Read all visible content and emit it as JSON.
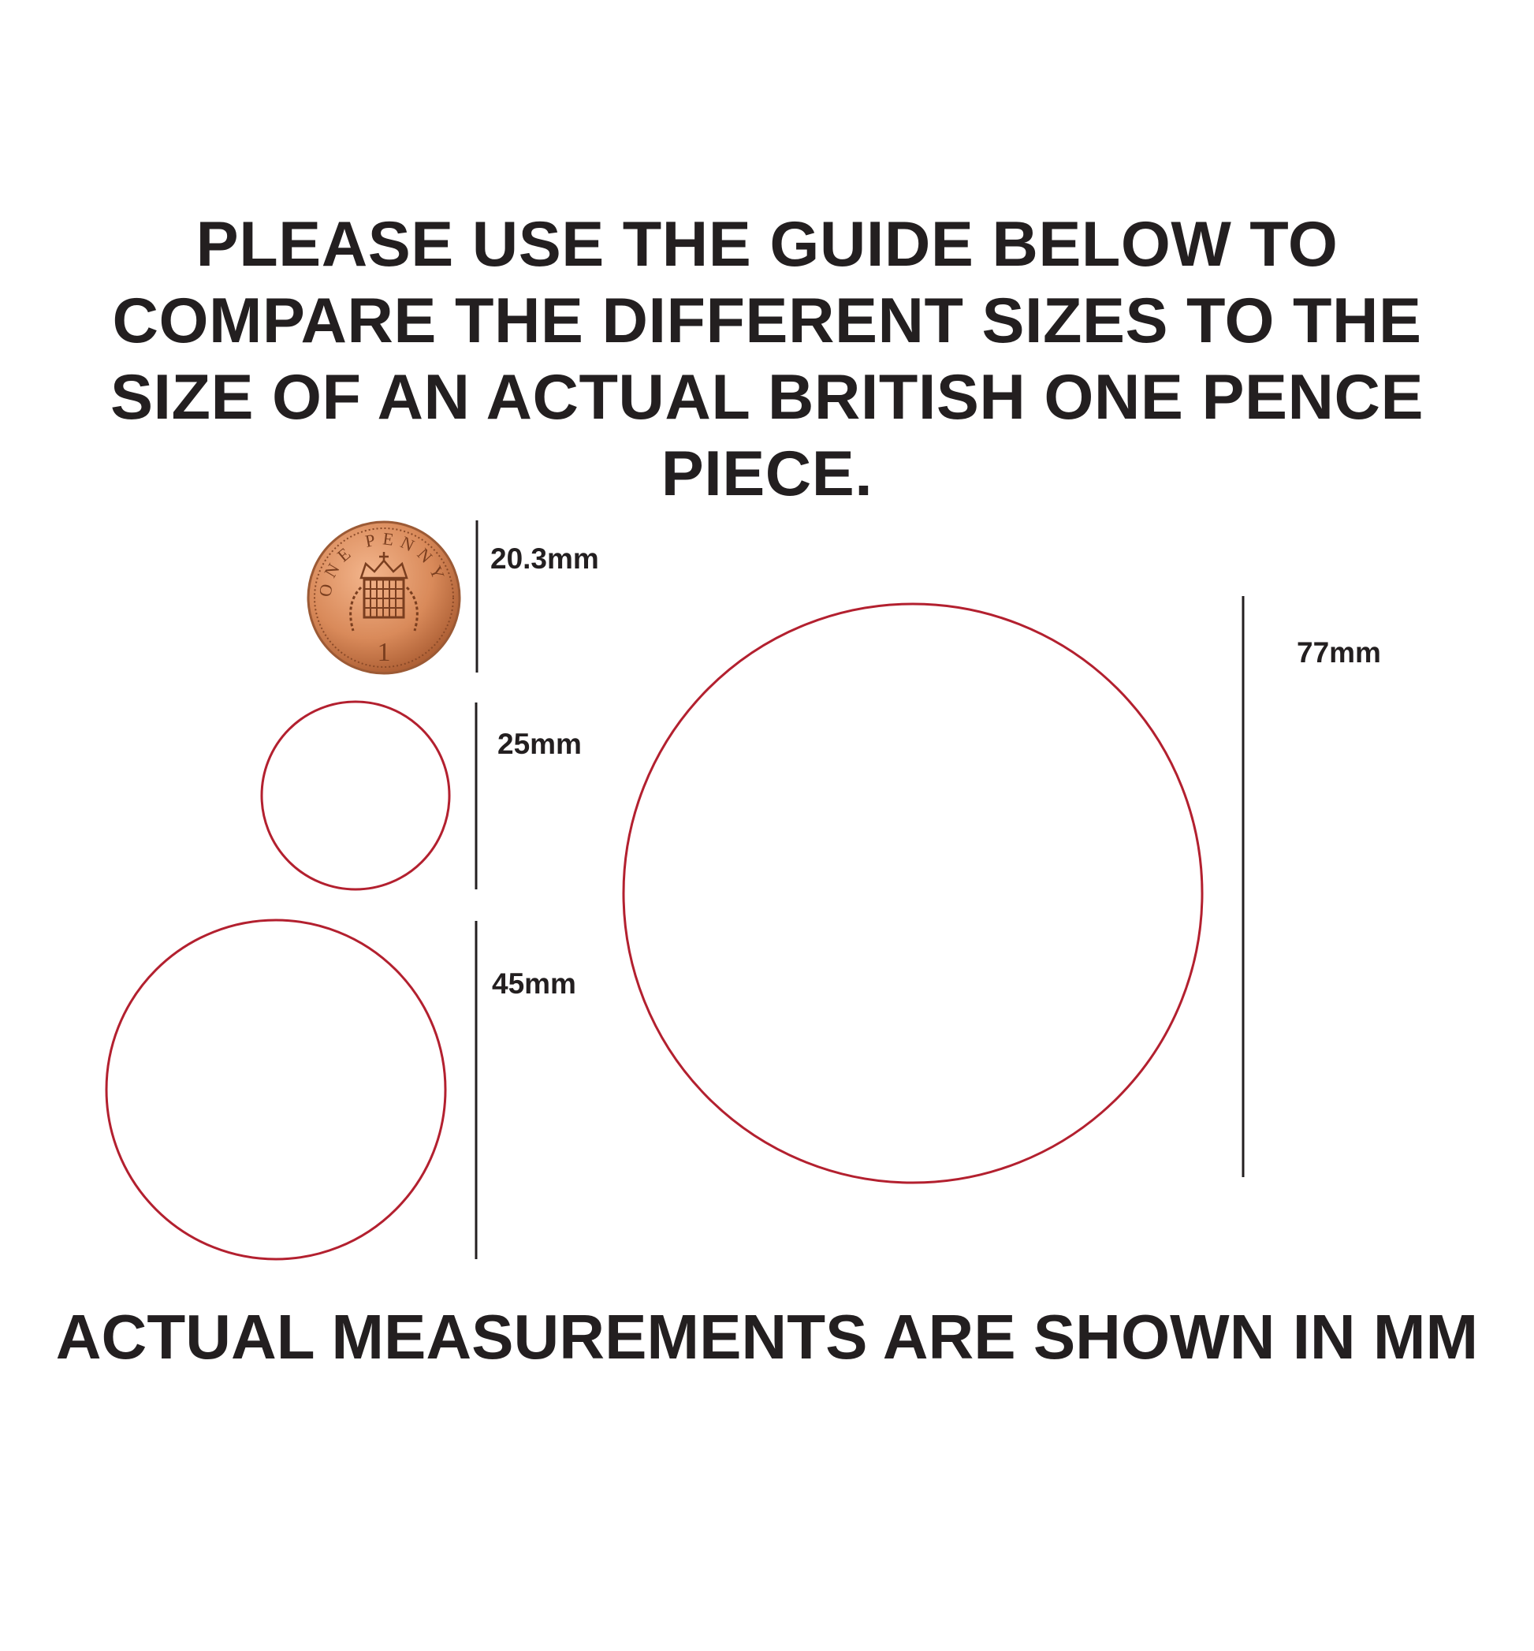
{
  "heading": {
    "lines": [
      "PLEASE USE THE GUIDE BELOW TO",
      "COMPARE THE DIFFERENT SIZES TO THE",
      "SIZE OF AN ACTUAL BRITISH ONE PENCE",
      "PIECE."
    ]
  },
  "coin": {
    "inscription": "ONE PENNY",
    "numeral": "1",
    "label": "20.3mm"
  },
  "sizes": [
    {
      "label": "25mm",
      "diameter_mm": 25
    },
    {
      "label": "45mm",
      "diameter_mm": 45
    },
    {
      "label": "77mm",
      "diameter_mm": 77
    }
  ],
  "footer": "ACTUAL MEASUREMENTS ARE SHOWN IN MM",
  "colors": {
    "circle_stroke": "#b3202f",
    "text": "#231f20",
    "coin": "#d98a5a"
  }
}
